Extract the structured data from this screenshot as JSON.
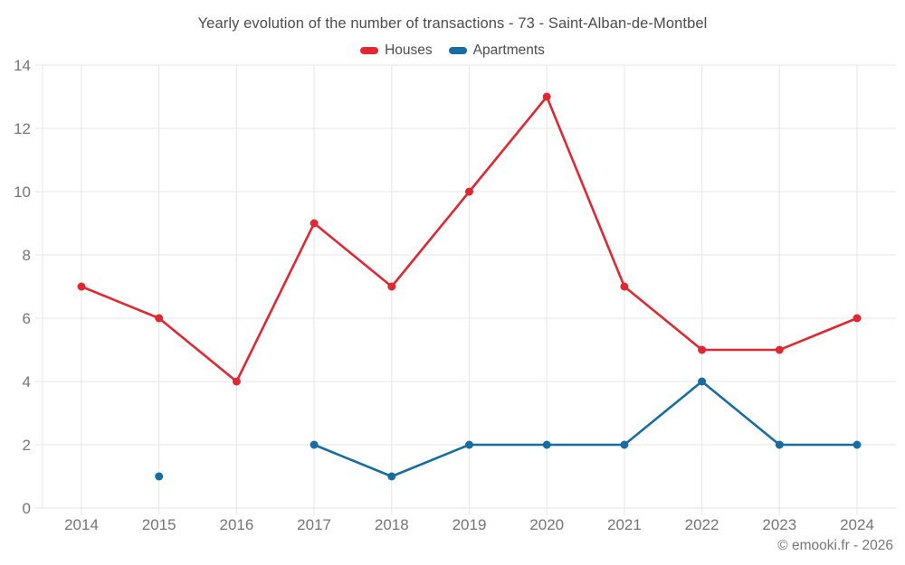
{
  "title": "Yearly evolution of the number of transactions - 73 - Saint-Alban-de-Montbel",
  "footer": "© emooki.fr - 2026",
  "colors": {
    "houses": "#e02832",
    "apartments": "#176ca0",
    "grid": "#e9e9e9",
    "tick_text": "#757575",
    "title_text": "#4c4c4c"
  },
  "legend": {
    "items": [
      {
        "label": "Houses",
        "color": "#e02832"
      },
      {
        "label": "Apartments",
        "color": "#176ca0"
      }
    ]
  },
  "chart_data": {
    "type": "line",
    "title": "Yearly evolution of the number of transactions - 73 - Saint-Alban-de-Montbel",
    "categories": [
      "2014",
      "2015",
      "2016",
      "2017",
      "2018",
      "2019",
      "2020",
      "2021",
      "2022",
      "2023",
      "2024"
    ],
    "series": [
      {
        "name": "Houses",
        "color": "#e02832",
        "values": [
          7,
          6,
          4,
          9,
          7,
          10,
          13,
          7,
          5,
          5,
          6
        ]
      },
      {
        "name": "Apartments",
        "color": "#176ca0",
        "values": [
          null,
          1,
          null,
          2,
          1,
          2,
          2,
          2,
          4,
          2,
          2
        ]
      }
    ],
    "xlabel": "",
    "ylabel": "",
    "ylim": [
      0,
      14
    ],
    "yticks": [
      0,
      2,
      4,
      6,
      8,
      10,
      12,
      14
    ],
    "grid": true,
    "legend_position": "top"
  }
}
